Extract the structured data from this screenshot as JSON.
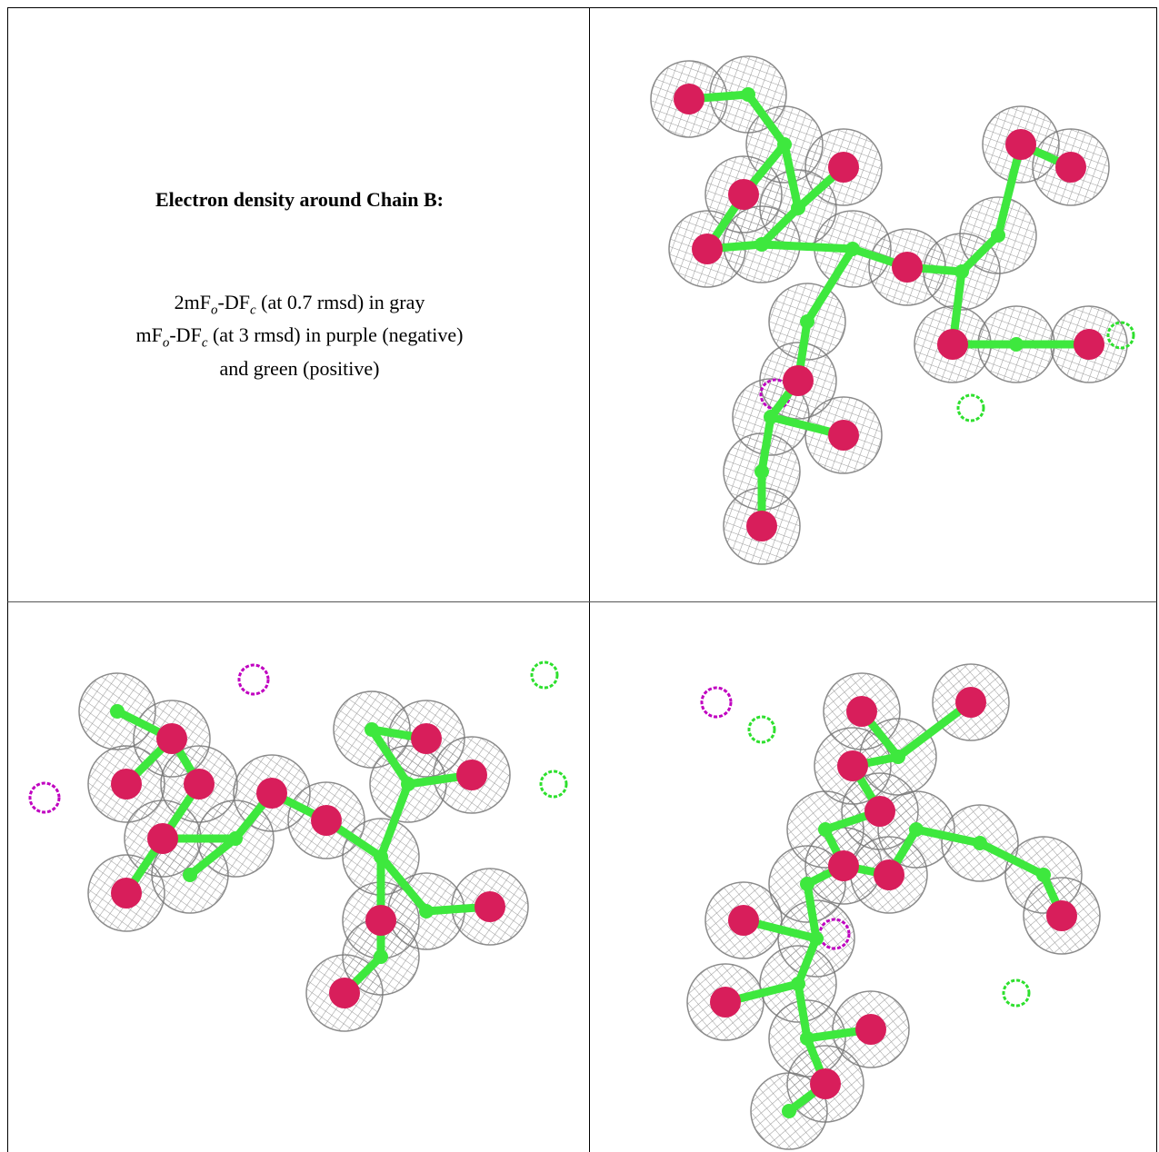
{
  "panel": {
    "title": "Electron density around Chain B:",
    "legend": [
      [
        "2mF",
        "o",
        "-DF",
        "c",
        " (at 0.7 rmsd) in gray"
      ],
      [
        "mF",
        "o",
        "-DF",
        "c",
        " (at 3 rmsd) in purple (negative)"
      ],
      [
        "and green (positive)"
      ]
    ]
  }
}
